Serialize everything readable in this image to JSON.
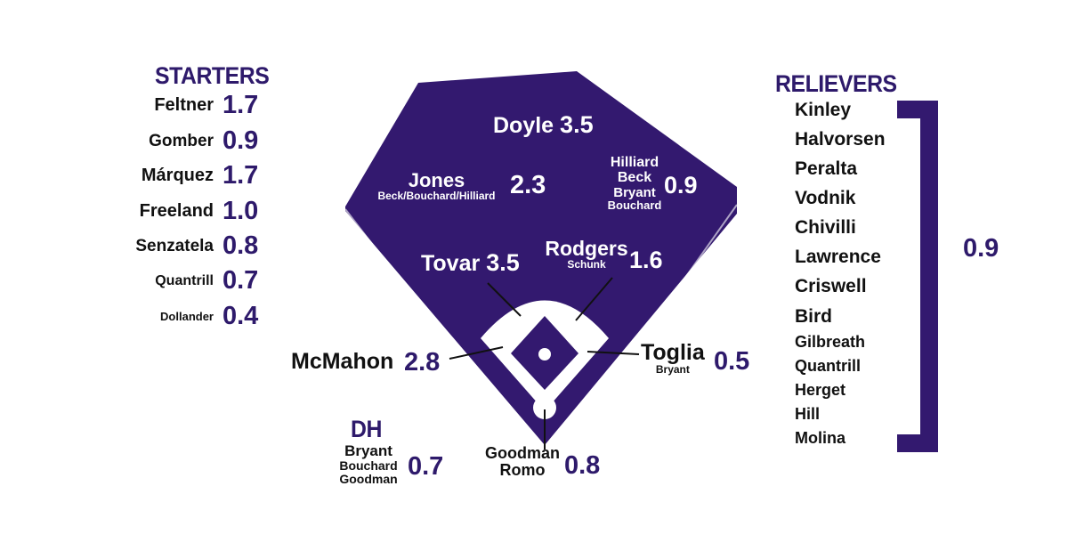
{
  "starters": {
    "title": "STARTERS",
    "items": [
      {
        "name": "Feltner",
        "value": "1.7"
      },
      {
        "name": "Gomber",
        "value": "0.9"
      },
      {
        "name": "Márquez",
        "value": "1.7"
      },
      {
        "name": "Freeland",
        "value": "1.0"
      },
      {
        "name": "Senzatela",
        "value": "0.8"
      },
      {
        "name": "Quantrill",
        "value": "0.7"
      },
      {
        "name": "Dollander",
        "value": "0.4"
      }
    ]
  },
  "relievers": {
    "title": "RELIEVERS",
    "items": [
      "Kinley",
      "Halvorsen",
      "Peralta",
      "Vodnik",
      "Chivilli",
      "Lawrence",
      "Criswell",
      "Bird",
      "Gilbreath",
      "Quantrill",
      "Herget",
      "Hill",
      "Molina"
    ],
    "value": "0.9"
  },
  "positions": {
    "cf": {
      "name": "Doyle",
      "value": "3.5"
    },
    "lf": {
      "name": "Jones",
      "sub": "Beck/Bouchard/Hilliard",
      "value": "2.3"
    },
    "rf": {
      "names": [
        "Hilliard",
        "Beck",
        "Bryant",
        "Bouchard"
      ],
      "value": "0.9"
    },
    "ss": {
      "name": "Tovar",
      "value": "3.5"
    },
    "second": {
      "name": "Rodgers",
      "sub": "Schunk",
      "value": "1.6"
    },
    "third": {
      "name": "McMahon",
      "value": "2.8"
    },
    "first": {
      "name": "Toglia",
      "sub": "Bryant",
      "value": "0.5"
    },
    "catcher": {
      "names": [
        "Goodman",
        "Romo"
      ],
      "value": "0.8"
    },
    "dh": {
      "title": "DH",
      "names": [
        "Bryant",
        "Bouchard",
        "Goodman"
      ],
      "value": "0.7"
    }
  },
  "colors": {
    "purple": "#33196f",
    "dark_text": "#111111",
    "white": "#ffffff"
  }
}
